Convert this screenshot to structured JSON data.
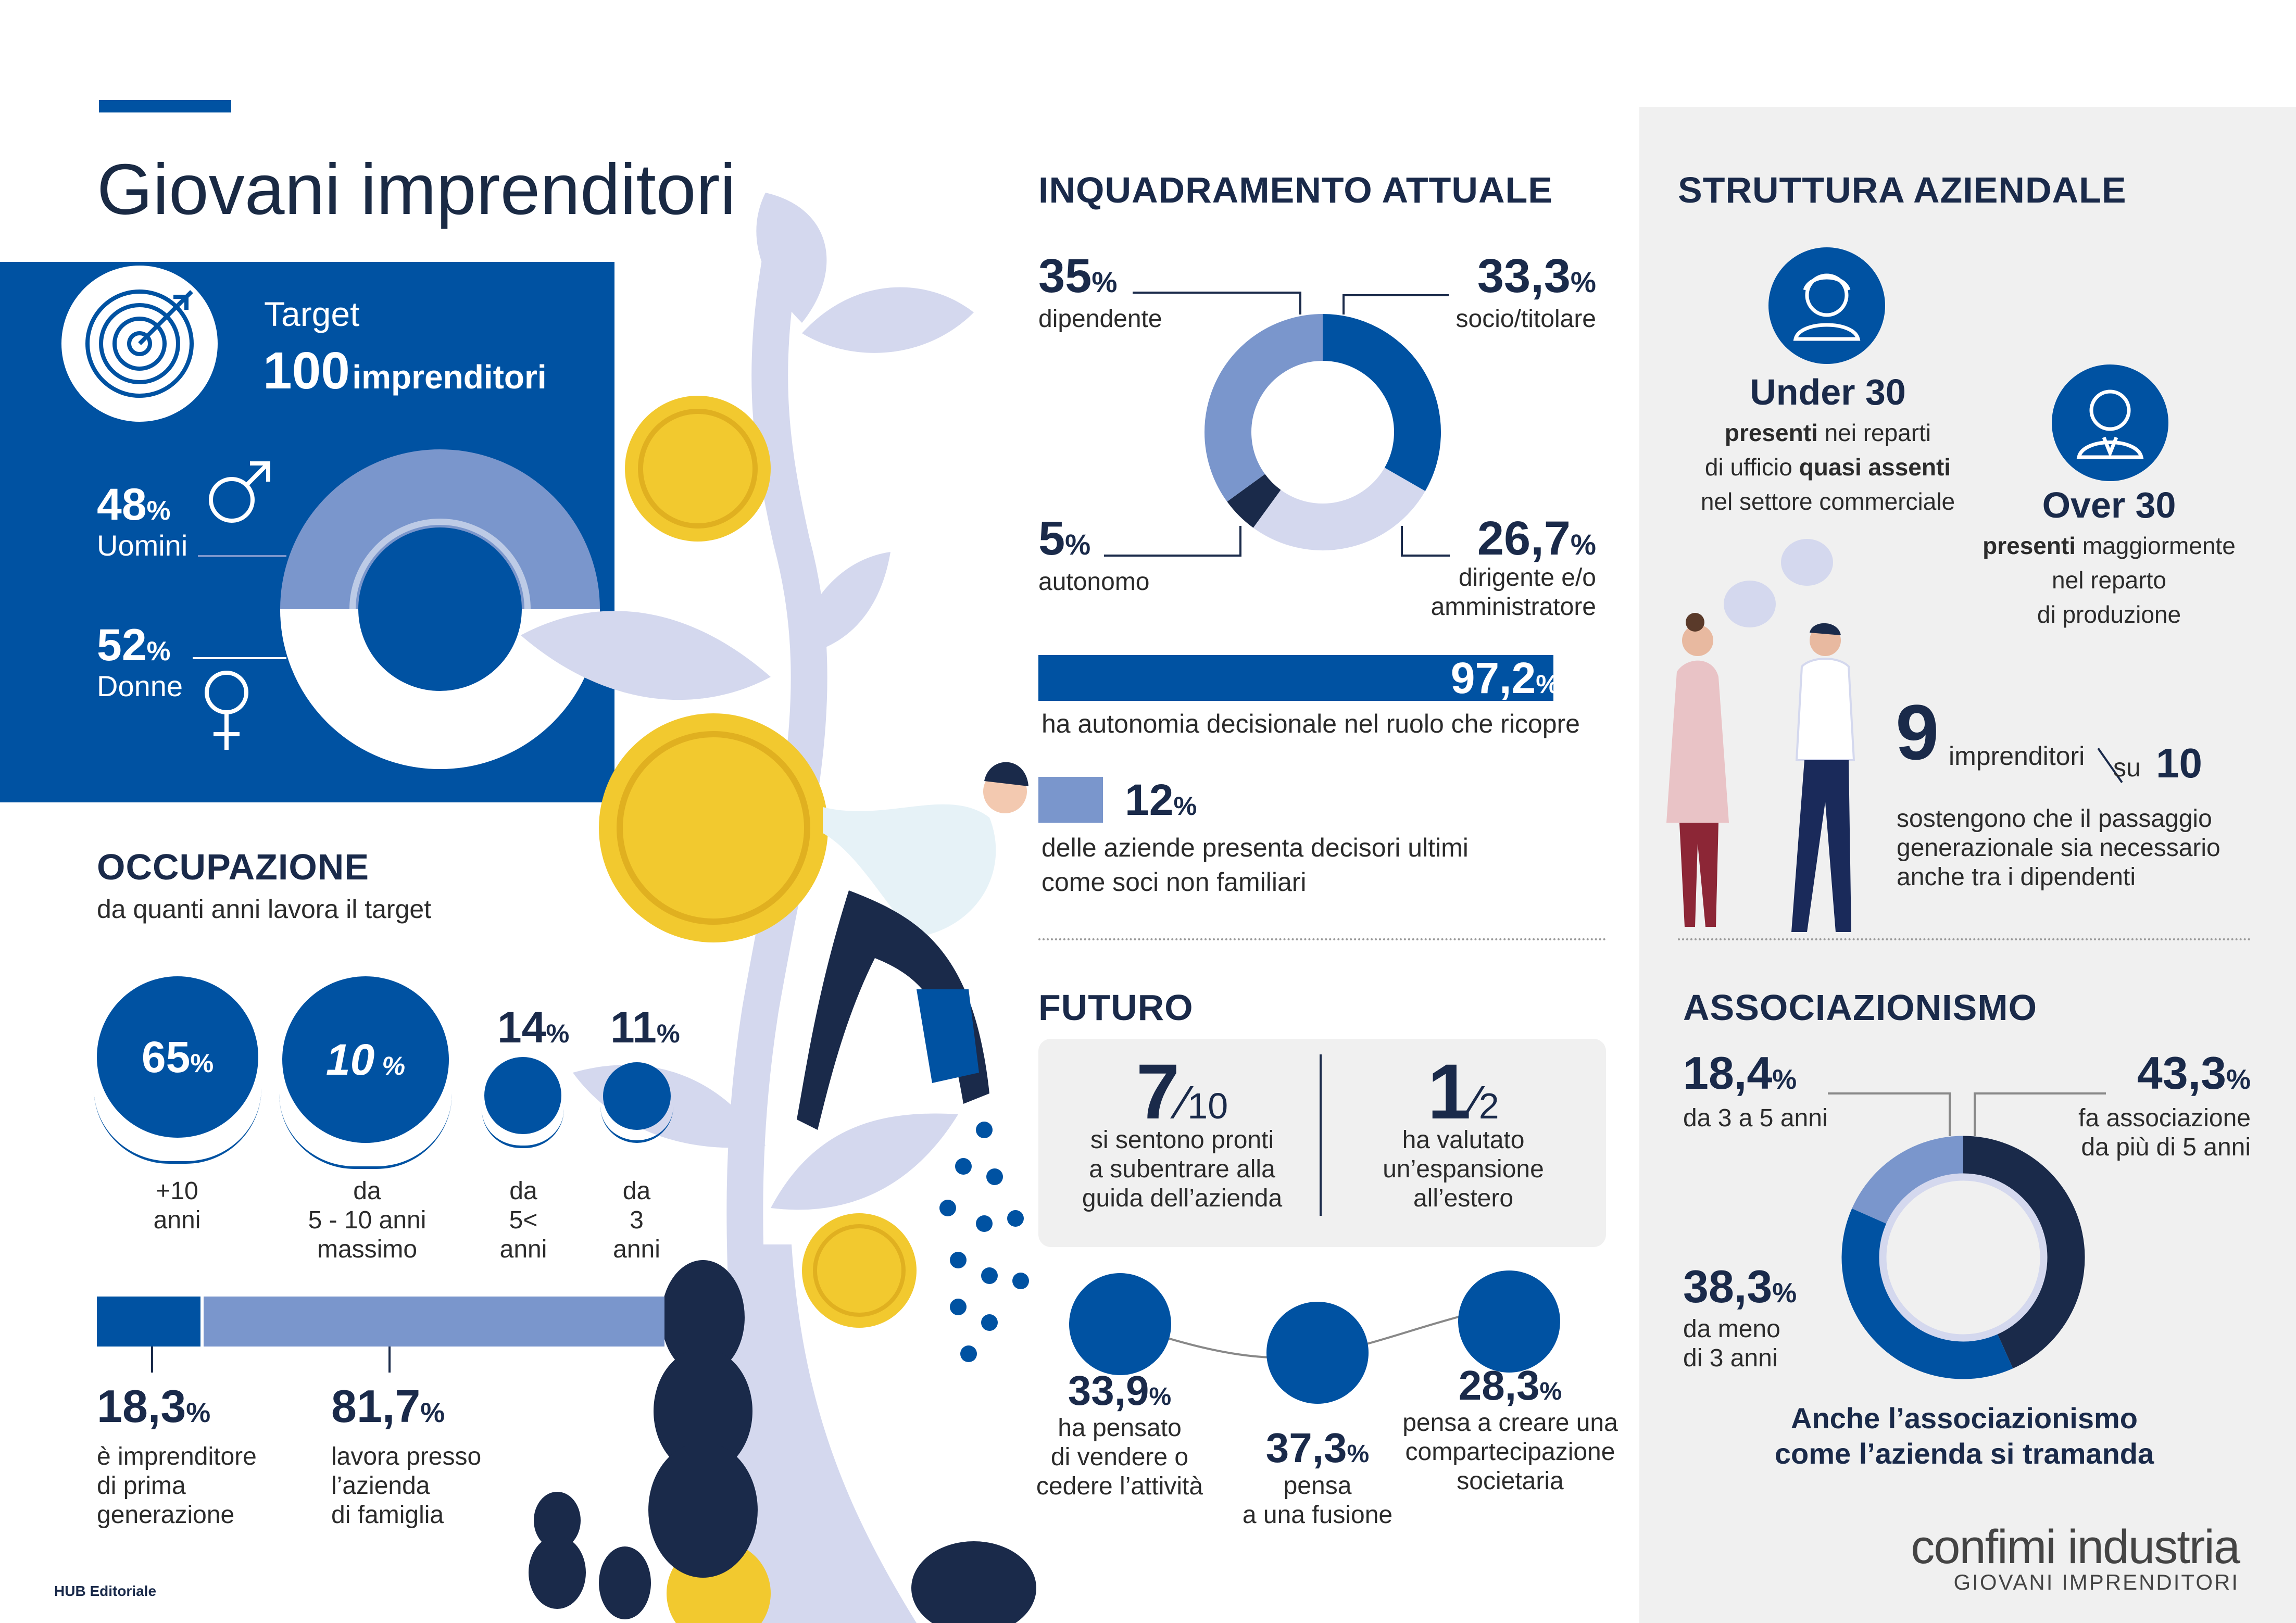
{
  "colors": {
    "blue": "#0052a2",
    "light_blue": "#7a96cc",
    "pale": "#d4d8ee",
    "navy": "#1a2a4a",
    "yellow": "#f2c92f",
    "grey_panel": "#f0f0f0"
  },
  "header": {
    "title": "Giovani imprenditori"
  },
  "target": {
    "label": "Target",
    "count": "100",
    "unit": "imprenditori",
    "icon": "target-icon"
  },
  "gender": {
    "chart_data": {
      "type": "pie",
      "series": [
        {
          "name": "Uomini",
          "value": 48
        },
        {
          "name": "Donne",
          "value": 52
        }
      ]
    },
    "men": {
      "value": "48",
      "pct": "%",
      "label": "Uomini"
    },
    "women": {
      "value": "52",
      "pct": "%",
      "label": "Donne"
    }
  },
  "occupazione": {
    "title": "OCCUPAZIONE",
    "subtitle": "da quanti anni lavora il target",
    "circles": [
      {
        "value": "65",
        "pct": "%",
        "l1": "+10",
        "l2": "anni",
        "l3": ""
      },
      {
        "value": "10",
        "pct": " %",
        "l1": "da",
        "l2": "5 - 10 anni",
        "l3": "massimo"
      },
      {
        "value": "14",
        "pct": "%",
        "l1": "da",
        "l2": "5<",
        "l3": "anni"
      },
      {
        "value": "11",
        "pct": "%",
        "l1": "da",
        "l2": "3",
        "l3": "anni"
      }
    ],
    "bar": {
      "chart_data": {
        "type": "bar",
        "values": [
          18.3,
          81.7
        ]
      }
    },
    "first_gen": {
      "value": "18,3",
      "pct": "%",
      "l1": "è imprenditore",
      "l2": "di prima",
      "l3": "generazione"
    },
    "family": {
      "value": "81,7",
      "pct": "%",
      "l1": "lavora presso",
      "l2": "l’azienda",
      "l3": "di famiglia"
    }
  },
  "inquadramento": {
    "title": "INQUADRAMENTO ATTUALE",
    "chart_data": {
      "type": "pie",
      "series": [
        {
          "name": "socio/titolare",
          "value": 33.3
        },
        {
          "name": "dirigente e/o amministratore",
          "value": 26.7
        },
        {
          "name": "autonomo",
          "value": 5
        },
        {
          "name": "dipendente",
          "value": 35
        }
      ]
    },
    "dip": {
      "value": "35",
      "pct": "%",
      "label": "dipendente"
    },
    "socio": {
      "value": "33,3",
      "pct": "%",
      "label": "socio/titolare"
    },
    "auto": {
      "value": "5",
      "pct": "%",
      "label": "autonomo"
    },
    "dir": {
      "value": "26,7",
      "pct": "%",
      "l1": "dirigente e/o",
      "l2": "amministratore"
    },
    "autonomia": {
      "value": "97,2",
      "pct": "%",
      "label": "ha autonomia decisionale nel ruolo che ricopre",
      "fraction": 0.972
    },
    "soci": {
      "value": "12",
      "pct": "%",
      "l1": "delle aziende presenta decisori ultimi",
      "l2": "come soci non familiari"
    }
  },
  "struttura": {
    "title": "STRUTTURA AZIENDALE",
    "under": {
      "title": "Under 30",
      "l1b": "presenti",
      "l1": " nei reparti",
      "l2": "di ufficio ",
      "l2b": "quasi assenti",
      "l3": "nel settore commerciale"
    },
    "over": {
      "title": "Over 30",
      "l1b": "presenti",
      "l1": " maggiormente",
      "l2": "nel reparto",
      "l3": "di produzione"
    },
    "nine": {
      "num": "9",
      "word": "imprenditori",
      "su": "su",
      "den": "10",
      "l1": "sostengono che il passaggio",
      "l2": "generazionale sia necessario",
      "l3": "anche tra i dipendenti"
    }
  },
  "futuro": {
    "title": "FUTURO",
    "a": {
      "num": "7",
      "den": "10",
      "l1": "si sentono pronti",
      "l2": "a subentrare alla",
      "l3": "guida dell’azienda"
    },
    "b": {
      "num": "1",
      "den": "2",
      "l1": "ha valutato",
      "l2": "un’espansione",
      "l3": "all’estero"
    },
    "c1": {
      "value": "33,9",
      "pct": "%",
      "l1": "ha pensato",
      "l2": "di vendere o",
      "l3": "cedere l’attività"
    },
    "c2": {
      "value": "37,3",
      "pct": "%",
      "l1": "pensa",
      "l2": "a una fusione"
    },
    "c3": {
      "value": "28,3",
      "pct": "%",
      "l1": "pensa a creare una",
      "l2": "compartecipazione",
      "l3": "societaria"
    }
  },
  "associazionismo": {
    "title": "ASSOCIAZIONISMO",
    "chart_data": {
      "type": "pie",
      "series": [
        {
          "name": "fa associazione da più di 5 anni",
          "value": 43.3
        },
        {
          "name": "da meno di 3 anni",
          "value": 38.3
        },
        {
          "name": "da 3 a 5 anni",
          "value": 18.4
        }
      ]
    },
    "a": {
      "value": "18,4",
      "pct": "%",
      "label": "da 3 a 5 anni"
    },
    "b": {
      "value": "43,3",
      "pct": "%",
      "l1": "fa associazione",
      "l2": "da più di 5 anni"
    },
    "c": {
      "value": "38,3",
      "pct": "%",
      "l1": "da meno",
      "l2": "di 3 anni"
    },
    "footer1": "Anche l’associazionismo",
    "footer2": "come l’azienda si tramanda"
  },
  "credits": {
    "left": "HUB Editoriale",
    "brand": "confimi industria",
    "brand_sub": "GIOVANI IMPRENDITORI"
  }
}
